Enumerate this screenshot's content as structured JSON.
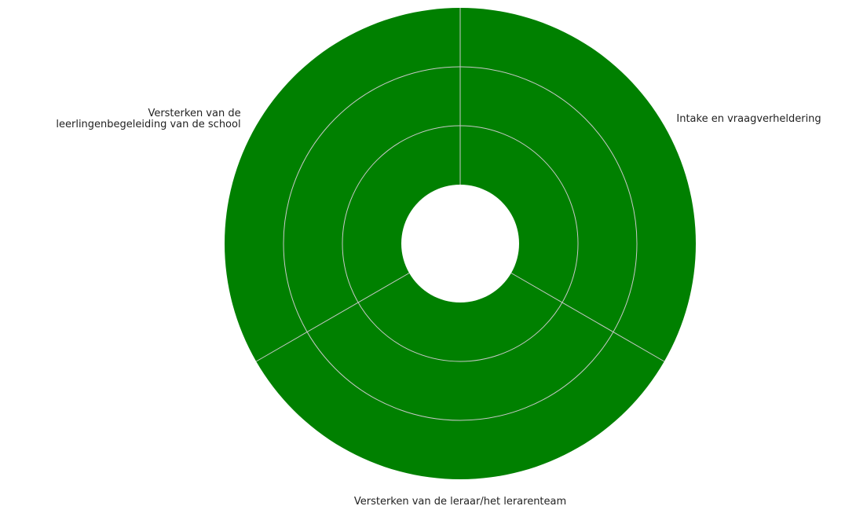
{
  "chart_data": {
    "type": "pie",
    "variant": "multi-ring sunburst",
    "categories": [
      "Intake en vraagverheldering",
      "Versterken van de leraar/het lerarenteam",
      "Versterken van de leerlingenbegeleiding van de school"
    ],
    "rings": 3,
    "series": [
      {
        "values": [
          1,
          1,
          1
        ]
      },
      {
        "values": [
          1,
          1,
          1
        ]
      },
      {
        "values": [
          1,
          1,
          1
        ]
      }
    ],
    "labels": [
      {
        "lines": [
          "Intake en vraagverheldering"
        ],
        "anchor": "start"
      },
      {
        "lines": [
          "Versterken van de leraar/het lerarenteam"
        ],
        "anchor": "middle"
      },
      {
        "lines": [
          "Versterken van de",
          "leerlingenbegeleiding van de school"
        ],
        "anchor": "end"
      }
    ],
    "colors": {
      "fill": "#008000",
      "divider": "#c8c8c8",
      "hole": "#ffffff"
    },
    "legend": "none",
    "grid": false
  }
}
